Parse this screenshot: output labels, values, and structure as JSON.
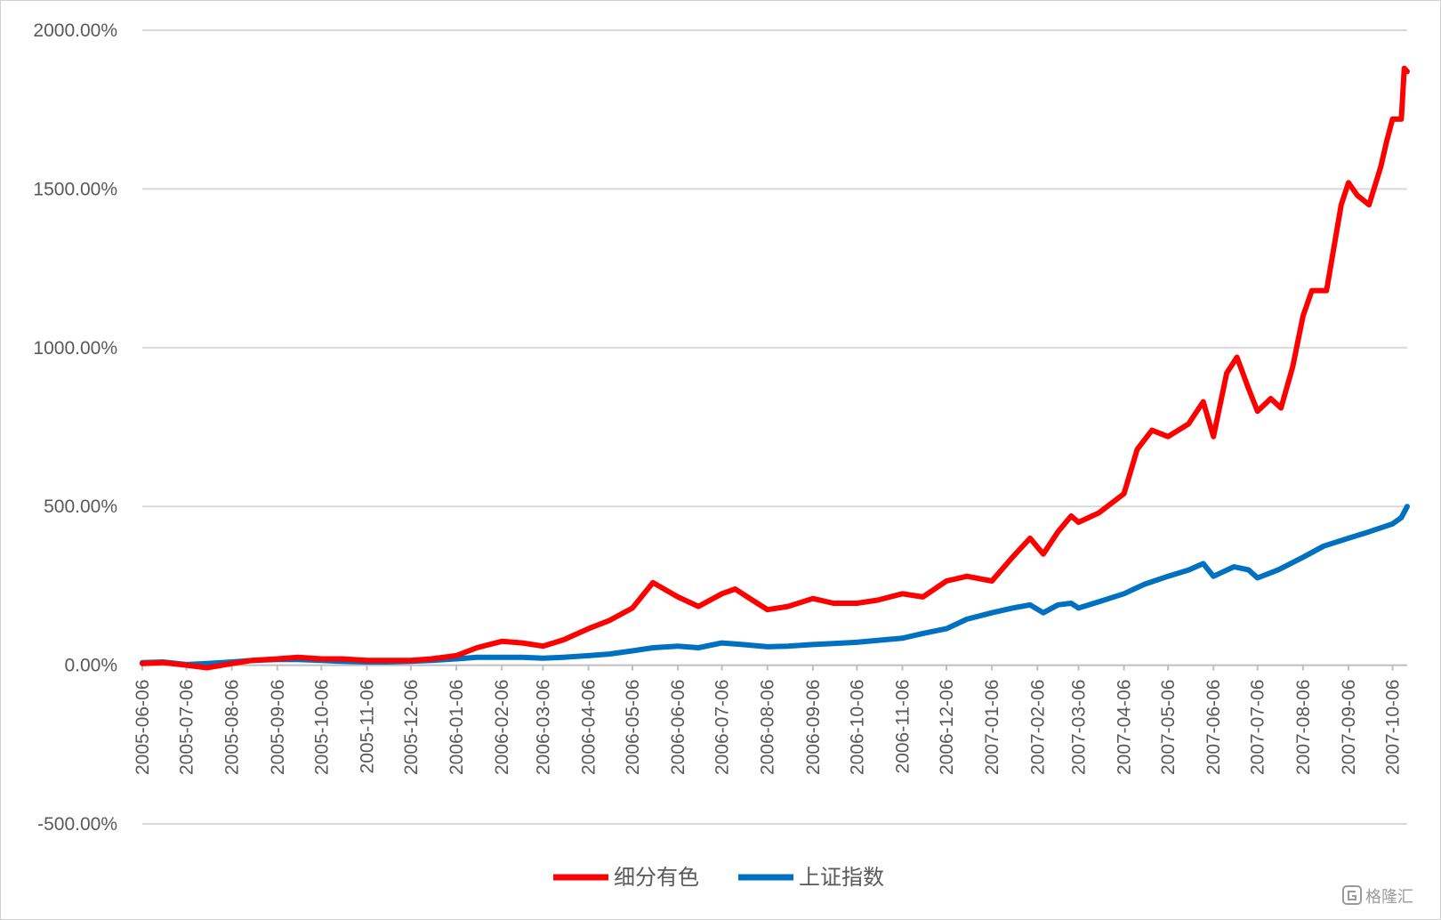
{
  "chart_data": {
    "type": "line",
    "title": "",
    "xlabel": "",
    "ylabel": "",
    "ylim": [
      -500,
      2000
    ],
    "y_ticks": [
      2000,
      1500,
      1000,
      500,
      0,
      -500
    ],
    "y_tick_labels": [
      "2000.00%",
      "1500.00%",
      "1000.00%",
      "500.00%",
      "0.00%",
      "-500.00%"
    ],
    "x_tick_labels": [
      "2005-06-06",
      "2005-07-06",
      "2005-08-06",
      "2005-09-06",
      "2005-10-06",
      "2005-11-06",
      "2005-12-06",
      "2006-01-06",
      "2006-02-06",
      "2006-03-06",
      "2006-04-06",
      "2006-05-06",
      "2006-06-06",
      "2006-07-06",
      "2006-08-06",
      "2006-09-06",
      "2006-10-06",
      "2006-11-06",
      "2006-12-06",
      "2007-01-06",
      "2007-02-06",
      "2007-03-06",
      "2007-04-06",
      "2007-05-06",
      "2007-06-06",
      "2007-07-06",
      "2007-08-06",
      "2007-09-06",
      "2007-10-06"
    ],
    "x_range": [
      "2005-06-06",
      "2007-10-16"
    ],
    "grid": true,
    "legend_position": "bottom",
    "series": [
      {
        "name": "细分有色",
        "color": "#ff0000",
        "points": [
          [
            "2005-06-06",
            5
          ],
          [
            "2005-06-20",
            8
          ],
          [
            "2005-07-06",
            0
          ],
          [
            "2005-07-20",
            -8
          ],
          [
            "2005-08-06",
            5
          ],
          [
            "2005-08-20",
            15
          ],
          [
            "2005-09-06",
            20
          ],
          [
            "2005-09-20",
            25
          ],
          [
            "2005-10-06",
            20
          ],
          [
            "2005-10-20",
            20
          ],
          [
            "2005-11-06",
            15
          ],
          [
            "2005-11-20",
            15
          ],
          [
            "2005-12-06",
            15
          ],
          [
            "2005-12-20",
            20
          ],
          [
            "2006-01-06",
            30
          ],
          [
            "2006-01-20",
            55
          ],
          [
            "2006-02-06",
            75
          ],
          [
            "2006-02-20",
            70
          ],
          [
            "2006-03-06",
            60
          ],
          [
            "2006-03-20",
            80
          ],
          [
            "2006-04-06",
            115
          ],
          [
            "2006-04-20",
            140
          ],
          [
            "2006-05-06",
            180
          ],
          [
            "2006-05-20",
            260
          ],
          [
            "2006-06-06",
            215
          ],
          [
            "2006-06-20",
            185
          ],
          [
            "2006-07-06",
            225
          ],
          [
            "2006-07-15",
            240
          ],
          [
            "2006-07-25",
            210
          ],
          [
            "2006-08-06",
            175
          ],
          [
            "2006-08-20",
            185
          ],
          [
            "2006-09-06",
            210
          ],
          [
            "2006-09-20",
            195
          ],
          [
            "2006-10-06",
            195
          ],
          [
            "2006-10-20",
            205
          ],
          [
            "2006-11-06",
            225
          ],
          [
            "2006-11-20",
            215
          ],
          [
            "2006-12-06",
            265
          ],
          [
            "2006-12-20",
            280
          ],
          [
            "2007-01-06",
            265
          ],
          [
            "2007-01-20",
            340
          ],
          [
            "2007-02-01",
            400
          ],
          [
            "2007-02-10",
            350
          ],
          [
            "2007-02-20",
            420
          ],
          [
            "2007-03-01",
            470
          ],
          [
            "2007-03-06",
            450
          ],
          [
            "2007-03-20",
            480
          ],
          [
            "2007-04-06",
            540
          ],
          [
            "2007-04-15",
            680
          ],
          [
            "2007-04-25",
            740
          ],
          [
            "2007-05-06",
            720
          ],
          [
            "2007-05-20",
            760
          ],
          [
            "2007-05-30",
            830
          ],
          [
            "2007-06-06",
            720
          ],
          [
            "2007-06-15",
            920
          ],
          [
            "2007-06-22",
            970
          ],
          [
            "2007-06-30",
            870
          ],
          [
            "2007-07-06",
            800
          ],
          [
            "2007-07-15",
            840
          ],
          [
            "2007-07-22",
            810
          ],
          [
            "2007-07-30",
            940
          ],
          [
            "2007-08-06",
            1100
          ],
          [
            "2007-08-12",
            1180
          ],
          [
            "2007-08-22",
            1180
          ],
          [
            "2007-09-01",
            1450
          ],
          [
            "2007-09-06",
            1520
          ],
          [
            "2007-09-12",
            1480
          ],
          [
            "2007-09-20",
            1450
          ],
          [
            "2007-09-28",
            1570
          ],
          [
            "2007-10-02",
            1650
          ],
          [
            "2007-10-06",
            1720
          ],
          [
            "2007-10-12",
            1720
          ],
          [
            "2007-10-14",
            1880
          ],
          [
            "2007-10-16",
            1870
          ]
        ]
      },
      {
        "name": "上证指数",
        "color": "#0070c0",
        "points": [
          [
            "2005-06-06",
            8
          ],
          [
            "2005-06-20",
            10
          ],
          [
            "2005-07-06",
            2
          ],
          [
            "2005-07-20",
            5
          ],
          [
            "2005-08-06",
            10
          ],
          [
            "2005-08-20",
            15
          ],
          [
            "2005-09-06",
            18
          ],
          [
            "2005-09-20",
            18
          ],
          [
            "2005-10-06",
            15
          ],
          [
            "2005-10-20",
            12
          ],
          [
            "2005-11-06",
            10
          ],
          [
            "2005-11-20",
            10
          ],
          [
            "2005-12-06",
            12
          ],
          [
            "2005-12-20",
            15
          ],
          [
            "2006-01-06",
            20
          ],
          [
            "2006-01-20",
            25
          ],
          [
            "2006-02-06",
            25
          ],
          [
            "2006-02-20",
            25
          ],
          [
            "2006-03-06",
            22
          ],
          [
            "2006-03-20",
            25
          ],
          [
            "2006-04-06",
            30
          ],
          [
            "2006-04-20",
            35
          ],
          [
            "2006-05-06",
            45
          ],
          [
            "2006-05-20",
            55
          ],
          [
            "2006-06-06",
            60
          ],
          [
            "2006-06-20",
            55
          ],
          [
            "2006-07-06",
            70
          ],
          [
            "2006-07-20",
            65
          ],
          [
            "2006-08-06",
            58
          ],
          [
            "2006-08-20",
            60
          ],
          [
            "2006-09-06",
            65
          ],
          [
            "2006-09-20",
            68
          ],
          [
            "2006-10-06",
            72
          ],
          [
            "2006-10-20",
            78
          ],
          [
            "2006-11-06",
            85
          ],
          [
            "2006-11-20",
            100
          ],
          [
            "2006-12-06",
            115
          ],
          [
            "2006-12-20",
            145
          ],
          [
            "2007-01-06",
            165
          ],
          [
            "2007-01-20",
            180
          ],
          [
            "2007-02-01",
            190
          ],
          [
            "2007-02-10",
            165
          ],
          [
            "2007-02-20",
            190
          ],
          [
            "2007-03-01",
            195
          ],
          [
            "2007-03-06",
            180
          ],
          [
            "2007-03-20",
            200
          ],
          [
            "2007-04-06",
            225
          ],
          [
            "2007-04-20",
            255
          ],
          [
            "2007-05-06",
            280
          ],
          [
            "2007-05-20",
            300
          ],
          [
            "2007-05-30",
            320
          ],
          [
            "2007-06-06",
            280
          ],
          [
            "2007-06-20",
            310
          ],
          [
            "2007-06-30",
            300
          ],
          [
            "2007-07-06",
            275
          ],
          [
            "2007-07-20",
            300
          ],
          [
            "2007-08-06",
            340
          ],
          [
            "2007-08-20",
            375
          ],
          [
            "2007-09-06",
            400
          ],
          [
            "2007-09-20",
            420
          ],
          [
            "2007-10-06",
            445
          ],
          [
            "2007-10-12",
            465
          ],
          [
            "2007-10-16",
            500
          ]
        ]
      }
    ]
  },
  "watermark": {
    "text": "格隆汇",
    "icon": "glh-logo-icon"
  }
}
